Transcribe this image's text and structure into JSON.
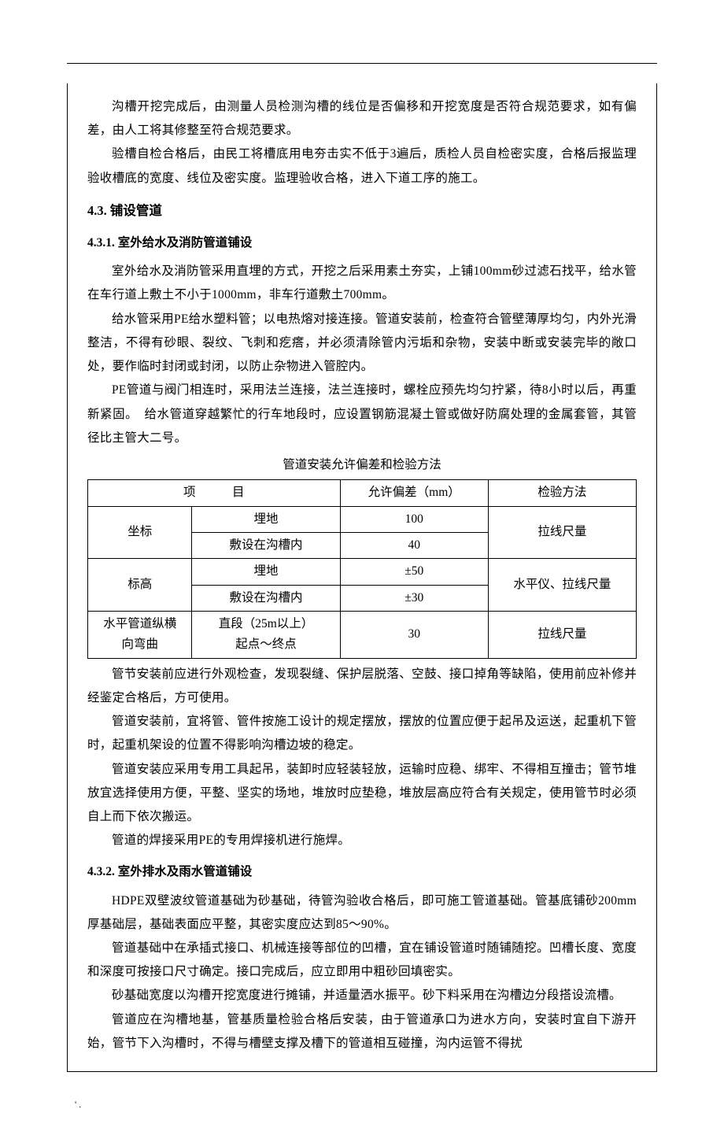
{
  "paragraphs": {
    "p1": "沟槽开挖完成后，由测量人员检测沟槽的线位是否偏移和开挖宽度是否符合规范要求，如有偏差，由人工将其修整至符合规范要求。",
    "p2": "验槽自检合格后，由民工将槽底用电夯击实不低于3遍后，质检人员自检密实度，合格后报监理验收槽底的宽度、线位及密实度。监理验收合格，进入下道工序的施工。",
    "p3": "室外给水及消防管采用直埋的方式，开挖之后采用素土夯实，上铺100mm砂过滤石找平，给水管在车行道上敷土不小于1000mm，非车行道敷土700mm。",
    "p4": "给水管采用PE给水塑料管；以电热熔对接连接。管道安装前，检查符合管壁薄厚均匀，内外光滑整洁，不得有砂眼、裂纹、飞刺和疙瘩，并必须清除管内污垢和杂物，安装中断或安装完毕的敞口处，要作临时封闭或封闭，以防止杂物进入管腔内。",
    "p5": "PE管道与阀门相连时，采用法兰连接，法兰连接时，螺栓应预先均匀拧紧，待8小时以后，再重新紧固。　给水管道穿越繁忙的行车地段时，应设置钢筋混凝土管或做好防腐处理的金属套管，其管径比主管大二号。",
    "p6": "管节安装前应进行外观检查，发现裂缝、保护层脱落、空鼓、接口掉角等缺陷，使用前应补修并经鉴定合格后，方可使用。",
    "p7": "管道安装前，宜将管、管件按施工设计的规定摆放，摆放的位置应便于起吊及运送，起重机下管时，起重机架设的位置不得影响沟槽边坡的稳定。",
    "p8": "管道安装应采用专用工具起吊，装卸时应轻装轻放，运输时应稳、绑牢、不得相互撞击；管节堆放宜选择使用方便，平整、坚实的场地，堆放时应垫稳，堆放层高应符合有关规定，使用管节时必须自上而下依次搬运。",
    "p9": "管道的焊接采用PE的专用焊接机进行施焊。",
    "p10": "HDPE双壁波纹管道基础为砂基础，待管沟验收合格后，即可施工管道基础。管基底铺砂200mm厚基础层，基础表面应平整，其密实度应达到85～90%。",
    "p11": "管道基础中在承插式接口、机械连接等部位的凹槽，宜在铺设管道时随铺随挖。凹槽长度、宽度和深度可按接口尺寸确定。接口完成后，应立即用中粗砂回填密实。",
    "p12": "砂基础宽度以沟槽开挖宽度进行摊铺，并适量洒水振平。砂下料采用在沟槽边分段搭设流槽。",
    "p13": "管道应在沟槽地基，管基质量检验合格后安装，由于管道承口为进水方向，安装时宜自下游开始，管节下入沟槽时，不得与槽壁支撑及槽下的管道相互碰撞，沟内运管不得扰"
  },
  "headings": {
    "h43": "4.3.  铺设管道",
    "h431": "4.3.1.  室外给水及消防管道铺设",
    "h432": "4.3.2.  室外排水及雨水管道铺设"
  },
  "table": {
    "title": "管道安装允许偏差和检验方法",
    "header": {
      "item": "项　　　目",
      "tolerance": "允许偏差（mm）",
      "method": "检验方法"
    },
    "rows": {
      "coord_label": "坐标",
      "coord_buried": "埋地",
      "coord_buried_val": "100",
      "coord_trench": "敷设在沟槽内",
      "coord_trench_val": "40",
      "coord_method": "拉线尺量",
      "elev_label": "标高",
      "elev_buried": "埋地",
      "elev_buried_val": "±50",
      "elev_trench": "敷设在沟槽内",
      "elev_trench_val": "±30",
      "elev_method": "水平仪、拉线尺量",
      "horiz_label1": "水平管道纵横",
      "horiz_label2": "向弯曲",
      "horiz_sub1": "直段（25m以上）",
      "horiz_sub2": "起点～终点",
      "horiz_val": "30",
      "horiz_method": "拉线尺量"
    }
  },
  "footer": "' ."
}
